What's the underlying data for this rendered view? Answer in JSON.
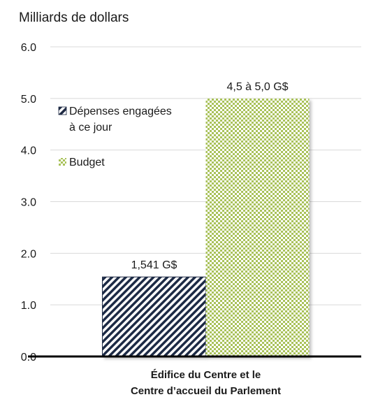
{
  "chart_data": {
    "type": "bar",
    "ylabel": "Milliards de dollars",
    "ylim": [
      0,
      6
    ],
    "yticks": [
      "0.0",
      "1.0",
      "2.0",
      "3.0",
      "4.0",
      "5.0",
      "6.0"
    ],
    "grid": true,
    "categories": [
      "Édifice du Centre et le Centre d’accueil du Parlement"
    ],
    "category_lines": [
      "Édifice du Centre et le",
      "Centre d’accueil du Parlement"
    ],
    "legend_placement": "upper-left",
    "series": [
      {
        "name": "Dépenses engagées à ce jour",
        "name_lines": [
          "Dépenses engagées",
          "à ce jour"
        ],
        "values": [
          1.541
        ],
        "label": "1,541 G$",
        "color": "#1f2a44",
        "pattern": "diagonal-hatch"
      },
      {
        "name": "Budget",
        "name_lines": [
          "Budget"
        ],
        "values": [
          5.0
        ],
        "label": "4,5 à 5,0 G$",
        "color": "#a9c25a",
        "pattern": "checker"
      }
    ]
  }
}
